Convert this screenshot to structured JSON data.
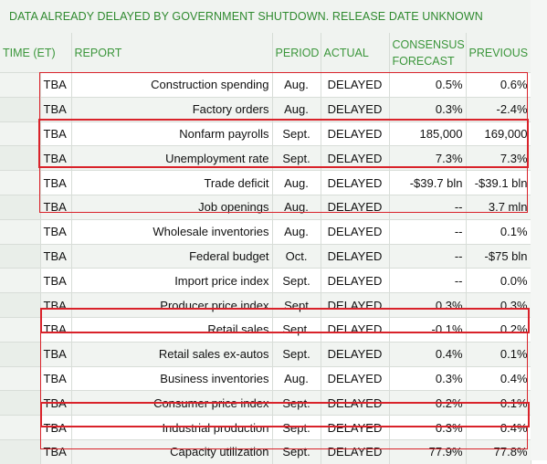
{
  "banner": "DATA ALREADY DELAYED  BY GOVERNMENT SHUTDOWN. RELEASE DATE UNKNOWN",
  "headers": {
    "time": "TIME (ET)",
    "report": "REPORT",
    "period": "PERIOD",
    "actual": "ACTUAL",
    "consensus_line1": "CONSENSUS",
    "consensus_line2": "FORECAST",
    "previous": "PREVIOUS"
  },
  "rows": [
    {
      "time": "TBA",
      "report": "Construction spending",
      "period": "Aug.",
      "actual": "DELAYED",
      "consensus": "0.5%",
      "previous": "0.6%"
    },
    {
      "time": "TBA",
      "report": "Factory orders",
      "period": "Aug.",
      "actual": "DELAYED",
      "consensus": "0.3%",
      "previous": "-2.4%"
    },
    {
      "time": "TBA",
      "report": "Nonfarm payrolls",
      "period": "Sept.",
      "actual": "DELAYED",
      "consensus": "185,000",
      "previous": "169,000"
    },
    {
      "time": "TBA",
      "report": "Unemployment rate",
      "period": "Sept.",
      "actual": "DELAYED",
      "consensus": "7.3%",
      "previous": "7.3%"
    },
    {
      "time": "TBA",
      "report": "Trade deficit",
      "period": "Aug.",
      "actual": "DELAYED",
      "consensus": "-$39.7 bln",
      "previous": "-$39.1 bln"
    },
    {
      "time": "TBA",
      "report": "Job openings",
      "period": "Aug.",
      "actual": "DELAYED",
      "consensus": "--",
      "previous": "3.7 mln"
    },
    {
      "time": "TBA",
      "report": "Wholesale inventories",
      "period": "Aug.",
      "actual": "DELAYED",
      "consensus": "--",
      "previous": "0.1%"
    },
    {
      "time": "TBA",
      "report": "Federal budget",
      "period": "Oct.",
      "actual": "DELAYED",
      "consensus": "--",
      "previous": "-$75 bln"
    },
    {
      "time": "TBA",
      "report": "Import price index",
      "period": "Sept.",
      "actual": "DELAYED",
      "consensus": "--",
      "previous": "0.0%"
    },
    {
      "time": "TBA",
      "report": "Producer price index",
      "period": "Sept",
      "actual": "DELAYED",
      "consensus": "0.3%",
      "previous": "0.3%"
    },
    {
      "time": "TBA",
      "report": "Retail sales",
      "period": "Sept.",
      "actual": "DELAYED",
      "consensus": "-0.1%",
      "previous": "0.2%"
    },
    {
      "time": "TBA",
      "report": "Retail sales ex-autos",
      "period": "Sept.",
      "actual": "DELAYED",
      "consensus": "0.4%",
      "previous": "0.1%"
    },
    {
      "time": "TBA",
      "report": "Business inventories",
      "period": "Aug.",
      "actual": "DELAYED",
      "consensus": "0.3%",
      "previous": "0.4%"
    },
    {
      "time": "TBA",
      "report": "Consumer price index",
      "period": "Sept.",
      "actual": "DELAYED",
      "consensus": "0.2%",
      "previous": "0.1%"
    },
    {
      "time": "TBA",
      "report": "Industrial production",
      "period": "Sept.",
      "actual": "DELAYED",
      "consensus": "0.3%",
      "previous": "0.4%"
    },
    {
      "time": "TBA",
      "report": "Capacity utilization",
      "period": "Sept.",
      "actual": "DELAYED",
      "consensus": "77.9%",
      "previous": "77.8%"
    }
  ],
  "highlight_color": "#d9222a",
  "header_text_color": "#3b963b"
}
